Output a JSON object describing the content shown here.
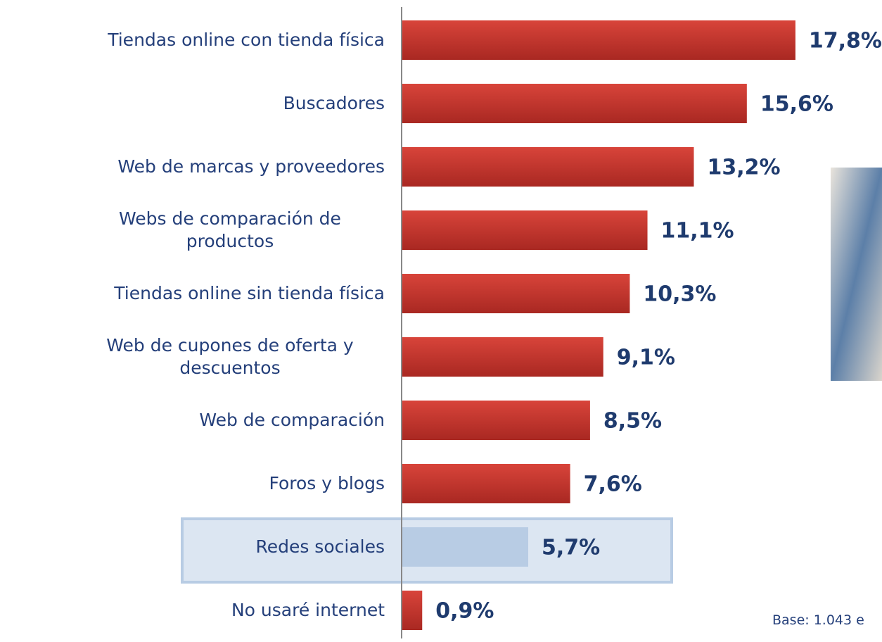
{
  "chart_data": {
    "type": "bar",
    "orientation": "horizontal",
    "categories": [
      "Tiendas online con tienda física",
      "Buscadores",
      "Web de marcas y proveedores",
      "Webs de comparación de productos",
      "Tiendas online sin tienda física",
      "Web de cupones de oferta y descuentos",
      "Web de comparación",
      "Foros y blogs",
      "Redes sociales",
      "No usaré internet"
    ],
    "values": [
      17.8,
      15.6,
      13.2,
      11.1,
      10.3,
      9.1,
      8.5,
      7.6,
      5.7,
      0.9
    ],
    "value_labels": [
      "17,8%",
      "15,6%",
      "13,2%",
      "11,1%",
      "10,3%",
      "9,1%",
      "8,5%",
      "7,6%",
      "5,7%",
      "0,9%"
    ],
    "colors": [
      "#c0392f",
      "#c0392f",
      "#c0392f",
      "#c0392f",
      "#c0392f",
      "#c0392f",
      "#c0392f",
      "#c0392f",
      "#b8cce4",
      "#c0392f"
    ],
    "note": "Base: 1.043 e"
  }
}
